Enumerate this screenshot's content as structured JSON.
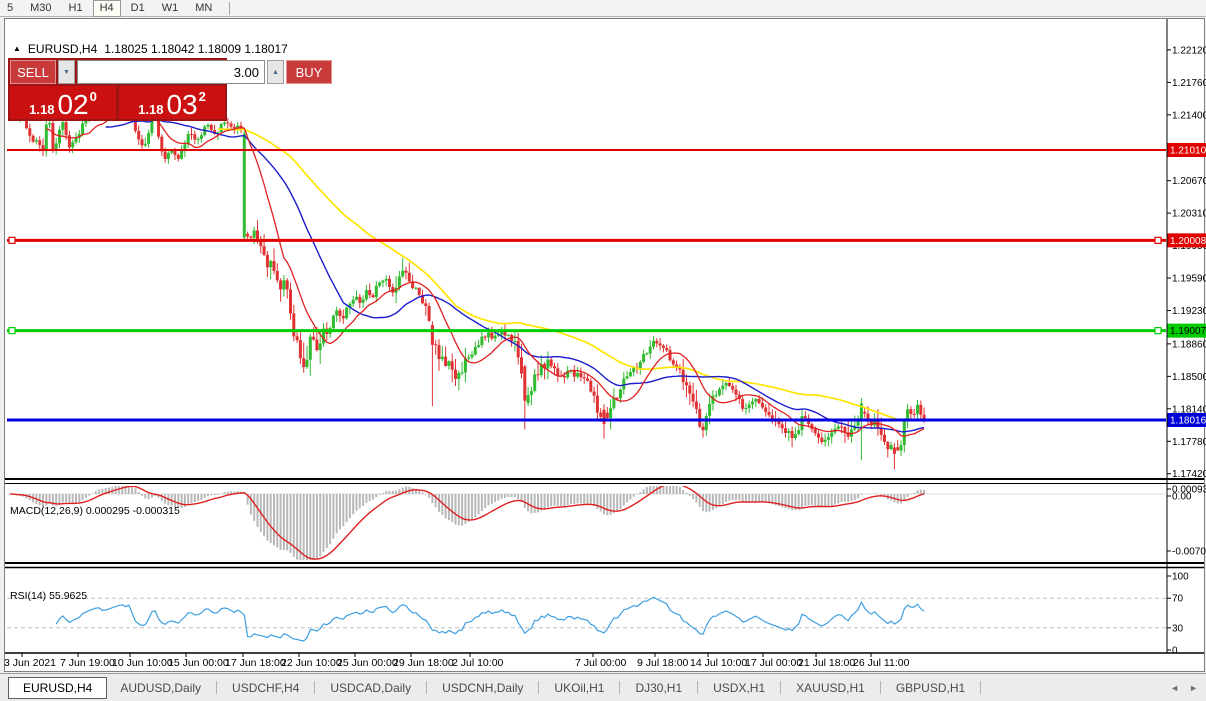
{
  "toolbar": {
    "periods": [
      {
        "label": "5",
        "active": false
      },
      {
        "label": "M30",
        "active": false
      },
      {
        "label": "H1",
        "active": false
      },
      {
        "label": "H4",
        "active": true
      },
      {
        "label": "D1",
        "active": false
      },
      {
        "label": "W1",
        "active": false
      },
      {
        "label": "MN",
        "active": false
      }
    ]
  },
  "chart": {
    "collapse_arrow": "▲",
    "symbol_title": "EURUSD,H4",
    "ohlc_text": "1.18025 1.18042 1.18009 1.18017"
  },
  "trade_panel": {
    "sell_label": "SELL",
    "buy_label": "BUY",
    "volume": "3.00",
    "spin_down": "▼",
    "spin_up": "▲",
    "sell_price": {
      "small": "1.18",
      "big": "02",
      "sup": "0"
    },
    "buy_price": {
      "small": "1.18",
      "big": "03",
      "sup": "2"
    }
  },
  "indicators": {
    "macd_label": "MACD(12,26,9) 0.000295 -0.000315",
    "rsi_label": "RSI(14) 55.9625"
  },
  "chart_data": {
    "type": "candlestick",
    "symbol": "EURUSD",
    "timeframe": "H4",
    "colors": {
      "up": "#30bb30",
      "down": "#e03232",
      "ma_fast": "#e02020",
      "ma_mid": "#1c1ccc",
      "ma_slow": "#ffe400",
      "macd_bar": "#b8b8b8",
      "macd_signal": "#e02020",
      "rsi": "#3d9fe0",
      "axis_text": "#000000",
      "dashed_level": "#c0c0c0"
    },
    "yticks": [
      {
        "label": "1.22120",
        "price": 1.2212
      },
      {
        "label": "1.21760",
        "price": 1.2176
      },
      {
        "label": "1.21400",
        "price": 1.214
      },
      {
        "label": "1.20670",
        "price": 1.2067
      },
      {
        "label": "1.20310",
        "price": 1.2031
      },
      {
        "label": "1.19950",
        "price": 1.1995
      },
      {
        "label": "1.19590",
        "price": 1.1959
      },
      {
        "label": "1.19230",
        "price": 1.1923
      },
      {
        "label": "1.18860",
        "price": 1.1886
      },
      {
        "label": "1.18500",
        "price": 1.185
      },
      {
        "label": "1.18140",
        "price": 1.1814
      },
      {
        "label": "1.17780",
        "price": 1.1778
      },
      {
        "label": "1.17420",
        "price": 1.1742
      }
    ],
    "hlines": [
      {
        "price": 1.2101,
        "color": "#e00000",
        "width": 2,
        "badge": "1.21010",
        "badge_bg": "#e00000",
        "badge_fg": "#ffffff",
        "markers": false
      },
      {
        "price": 1.20008,
        "color": "#e00000",
        "width": 3,
        "badge": "1.20008",
        "badge_bg": "#e00000",
        "badge_fg": "#ffffff",
        "markers": true
      },
      {
        "price": 1.19007,
        "color": "#00cc00",
        "width": 3,
        "badge": "1.19007",
        "badge_bg": "#00cc00",
        "badge_fg": "#000000",
        "markers": true
      },
      {
        "price": 1.18016,
        "color": "#0000e0",
        "width": 3,
        "badge": "1.18016",
        "badge_bg": "#0000d8",
        "badge_fg": "#ffffff",
        "markers": false
      }
    ],
    "xlabels": [
      [
        4,
        "3 Jun 2021"
      ],
      [
        60,
        "7 Jun 19:00"
      ],
      [
        112,
        "10 Jun 10:00"
      ],
      [
        168,
        "15 Jun 00:00"
      ],
      [
        225,
        "17 Jun 18:00"
      ],
      [
        281,
        "22 Jun 10:00"
      ],
      [
        337,
        "25 Jun 00:00"
      ],
      [
        393,
        "29 Jun 18:00"
      ],
      [
        452,
        "2 Jul 10:00"
      ],
      [
        575,
        "7 Jul 00:00"
      ],
      [
        637,
        "9 Jul 18:00"
      ],
      [
        690,
        "14 Jul 10:00"
      ],
      [
        745,
        "17 Jul 00:00"
      ],
      [
        798,
        "21 Jul 18:00"
      ],
      [
        853,
        "26 Jul 11:00"
      ]
    ],
    "macd_axis": [
      {
        "label": "0.000936",
        "y": 489
      },
      {
        "label": "0.00",
        "y": 496
      },
      {
        "label": "-0.00705",
        "y": 551
      }
    ],
    "rsi_axis": [
      {
        "label": "100",
        "v": 100
      },
      {
        "label": "70",
        "v": 70
      },
      {
        "label": "30",
        "v": 30
      },
      {
        "label": "0",
        "v": 0
      }
    ],
    "rsi_dashed": [
      70,
      30
    ],
    "vol_default": 0.0009,
    "vol_zones": [
      [
        236,
        252,
        0.0013
      ],
      [
        252,
        322,
        0.0024
      ],
      [
        396,
        412,
        0.0018
      ],
      [
        424,
        472,
        0.0018
      ],
      [
        512,
        548,
        0.0021
      ],
      [
        588,
        616,
        0.0016
      ],
      [
        682,
        712,
        0.0017
      ],
      [
        768,
        802,
        0.0014
      ],
      [
        844,
        878,
        0.0016
      ],
      [
        878,
        906,
        0.0015
      ],
      [
        906,
        926,
        0.0012
      ]
    ],
    "special_candles": [
      {
        "x": 244,
        "o": 1.2004,
        "h": 1.2122,
        "l": 1.1999,
        "c": 1.2119
      },
      {
        "x": 434,
        "o": 1.1907,
        "h": 1.1911,
        "l": 1.1817,
        "c": 1.1885
      },
      {
        "x": 524,
        "o": 1.1861,
        "h": 1.1863,
        "l": 1.1791,
        "c": 1.1823
      },
      {
        "x": 603,
        "o": 1.1813,
        "h": 1.1819,
        "l": 1.1781,
        "c": 1.1797
      },
      {
        "x": 862,
        "o": 1.1801,
        "h": 1.1826,
        "l": 1.1757,
        "c": 1.182
      },
      {
        "x": 893,
        "o": 1.1771,
        "h": 1.1776,
        "l": 1.1747,
        "c": 1.1764
      }
    ],
    "close_path": [
      [
        10,
        1.215
      ],
      [
        16,
        1.2132
      ],
      [
        22,
        1.214
      ],
      [
        28,
        1.2122
      ],
      [
        34,
        1.2112
      ],
      [
        40,
        1.2104
      ],
      [
        44,
        1.2097
      ],
      [
        48,
        1.2153
      ],
      [
        52,
        1.21
      ],
      [
        58,
        1.2116
      ],
      [
        64,
        1.2133
      ],
      [
        68,
        1.2101
      ],
      [
        74,
        1.2113
      ],
      [
        82,
        1.2126
      ],
      [
        90,
        1.2141
      ],
      [
        98,
        1.2153
      ],
      [
        106,
        1.2141
      ],
      [
        114,
        1.2152
      ],
      [
        122,
        1.2161
      ],
      [
        130,
        1.2156
      ],
      [
        136,
        1.2118
      ],
      [
        142,
        1.2108
      ],
      [
        148,
        1.2113
      ],
      [
        154,
        1.215
      ],
      [
        160,
        1.2105
      ],
      [
        166,
        1.2092
      ],
      [
        172,
        1.2099
      ],
      [
        178,
        1.2091
      ],
      [
        184,
        1.2109
      ],
      [
        190,
        1.2119
      ],
      [
        196,
        1.2111
      ],
      [
        202,
        1.2121
      ],
      [
        208,
        1.2127
      ],
      [
        214,
        1.2119
      ],
      [
        220,
        1.2125
      ],
      [
        226,
        1.2131
      ],
      [
        232,
        1.2127
      ],
      [
        238,
        1.2123
      ],
      [
        243,
        1.212
      ],
      [
        244.6,
        1.2006
      ],
      [
        252,
        1.2008
      ],
      [
        257,
        1.1999
      ],
      [
        263,
        1.1993
      ],
      [
        269,
        1.1976
      ],
      [
        275,
        1.1964
      ],
      [
        281,
        1.1954
      ],
      [
        287,
        1.1946
      ],
      [
        292,
        1.1913
      ],
      [
        296,
        1.1889
      ],
      [
        300,
        1.1869
      ],
      [
        304,
        1.1863
      ],
      [
        308,
        1.1881
      ],
      [
        312,
        1.1893
      ],
      [
        317,
        1.1883
      ],
      [
        322,
        1.1903
      ],
      [
        327,
        1.1897
      ],
      [
        332,
        1.1911
      ],
      [
        337,
        1.1923
      ],
      [
        342,
        1.1915
      ],
      [
        348,
        1.1927
      ],
      [
        354,
        1.1939
      ],
      [
        360,
        1.1931
      ],
      [
        366,
        1.1943
      ],
      [
        372,
        1.1937
      ],
      [
        378,
        1.1951
      ],
      [
        384,
        1.1959
      ],
      [
        390,
        1.1947
      ],
      [
        396,
        1.1941
      ],
      [
        402,
        1.1973
      ],
      [
        406,
        1.1959
      ],
      [
        412,
        1.1951
      ],
      [
        418,
        1.1943
      ],
      [
        424,
        1.1931
      ],
      [
        430,
        1.1911
      ],
      [
        435,
        1.1886
      ],
      [
        440,
        1.1871
      ],
      [
        446,
        1.1863
      ],
      [
        452,
        1.1857
      ],
      [
        458,
        1.1849
      ],
      [
        464,
        1.1861
      ],
      [
        470,
        1.1875
      ],
      [
        476,
        1.1883
      ],
      [
        482,
        1.1893
      ],
      [
        488,
        1.1897
      ],
      [
        494,
        1.1891
      ],
      [
        500,
        1.1899
      ],
      [
        506,
        1.1895
      ],
      [
        512,
        1.1889
      ],
      [
        518,
        1.1873
      ],
      [
        523,
        1.1833
      ],
      [
        528,
        1.1821
      ],
      [
        533,
        1.1841
      ],
      [
        538,
        1.1853
      ],
      [
        544,
        1.1861
      ],
      [
        550,
        1.1865
      ],
      [
        556,
        1.1855
      ],
      [
        562,
        1.1849
      ],
      [
        568,
        1.1857
      ],
      [
        574,
        1.1851
      ],
      [
        580,
        1.1853
      ],
      [
        586,
        1.1845
      ],
      [
        592,
        1.1833
      ],
      [
        598,
        1.1813
      ],
      [
        603,
        1.1799
      ],
      [
        608,
        1.1809
      ],
      [
        614,
        1.1821
      ],
      [
        620,
        1.1833
      ],
      [
        626,
        1.1851
      ],
      [
        632,
        1.1855
      ],
      [
        638,
        1.1861
      ],
      [
        644,
        1.1873
      ],
      [
        650,
        1.1883
      ],
      [
        656,
        1.1891
      ],
      [
        662,
        1.1883
      ],
      [
        668,
        1.1875
      ],
      [
        674,
        1.1863
      ],
      [
        680,
        1.1855
      ],
      [
        686,
        1.1845
      ],
      [
        692,
        1.1823
      ],
      [
        698,
        1.1803
      ],
      [
        703,
        1.1793
      ],
      [
        708,
        1.1813
      ],
      [
        714,
        1.1829
      ],
      [
        720,
        1.1839
      ],
      [
        726,
        1.1843
      ],
      [
        732,
        1.1835
      ],
      [
        738,
        1.1823
      ],
      [
        744,
        1.1815
      ],
      [
        750,
        1.1821
      ],
      [
        756,
        1.1825
      ],
      [
        762,
        1.1815
      ],
      [
        768,
        1.1805
      ],
      [
        774,
        1.1797
      ],
      [
        780,
        1.1791
      ],
      [
        786,
        1.1781
      ],
      [
        792,
        1.1787
      ],
      [
        798,
        1.1795
      ],
      [
        804,
        1.1803
      ],
      [
        810,
        1.1791
      ],
      [
        816,
        1.1783
      ],
      [
        822,
        1.1775
      ],
      [
        828,
        1.1781
      ],
      [
        834,
        1.1791
      ],
      [
        840,
        1.1797
      ],
      [
        846,
        1.1791
      ],
      [
        852,
        1.1785
      ],
      [
        858,
        1.1799
      ],
      [
        862,
        1.1818
      ],
      [
        866,
        1.1807
      ],
      [
        872,
        1.1801
      ],
      [
        878,
        1.1791
      ],
      [
        884,
        1.1781
      ],
      [
        890,
        1.1771
      ],
      [
        896,
        1.1765
      ],
      [
        902,
        1.1781
      ],
      [
        907,
        1.1813
      ],
      [
        912,
        1.1809
      ],
      [
        917,
        1.1817
      ],
      [
        921,
        1.1807
      ],
      [
        925,
        1.1803
      ]
    ]
  },
  "tabs": {
    "active": "EURUSD,H4",
    "items": [
      "EURUSD,H4",
      "AUDUSD,Daily",
      "USDCHF,H4",
      "USDCAD,Daily",
      "USDCNH,Daily",
      "UKOil,H1",
      "DJ30,H1",
      "USDX,H1",
      "XAUUSD,H1",
      "GBPUSD,H1"
    ],
    "scroll_left": "◄",
    "scroll_right": "►"
  }
}
